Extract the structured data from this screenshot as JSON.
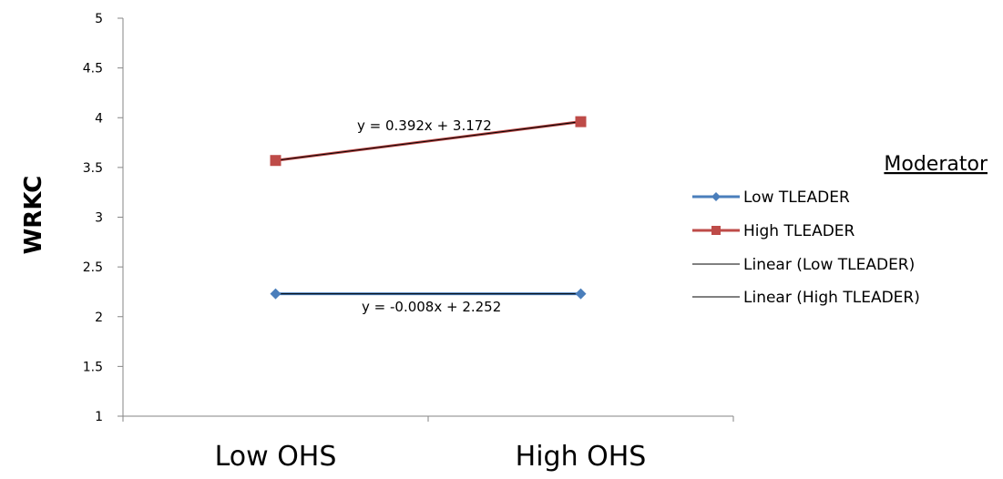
{
  "chart_data": {
    "type": "line",
    "categories": [
      "Low OHS",
      "High OHS"
    ],
    "ylabel": "WRKC",
    "ylim": [
      1,
      5
    ],
    "yticks": [
      "1",
      "1.5",
      "2",
      "2.5",
      "3",
      "3.5",
      "4",
      "4.5",
      "5"
    ],
    "grid": false,
    "legend": {
      "title": "Moderator",
      "placement": "right",
      "entries": [
        "Low TLEADER",
        "High TLEADER",
        "Linear (Low TLEADER)",
        "Linear (High TLEADER)"
      ]
    },
    "series": [
      {
        "name": "Low TLEADER",
        "values": [
          2.23,
          2.23
        ],
        "color": "#4a7ebb",
        "marker": "diamond"
      },
      {
        "name": "High TLEADER",
        "values": [
          3.57,
          3.96
        ],
        "color": "#be4b48",
        "marker": "square"
      }
    ],
    "trendlines": [
      {
        "name": "Linear (Low TLEADER)",
        "equation": "y = -0.008x + 2.252",
        "color": "#000000"
      },
      {
        "name": "Linear (High TLEADER)",
        "equation": "y = 0.392x + 3.172",
        "color": "#000000"
      }
    ]
  }
}
